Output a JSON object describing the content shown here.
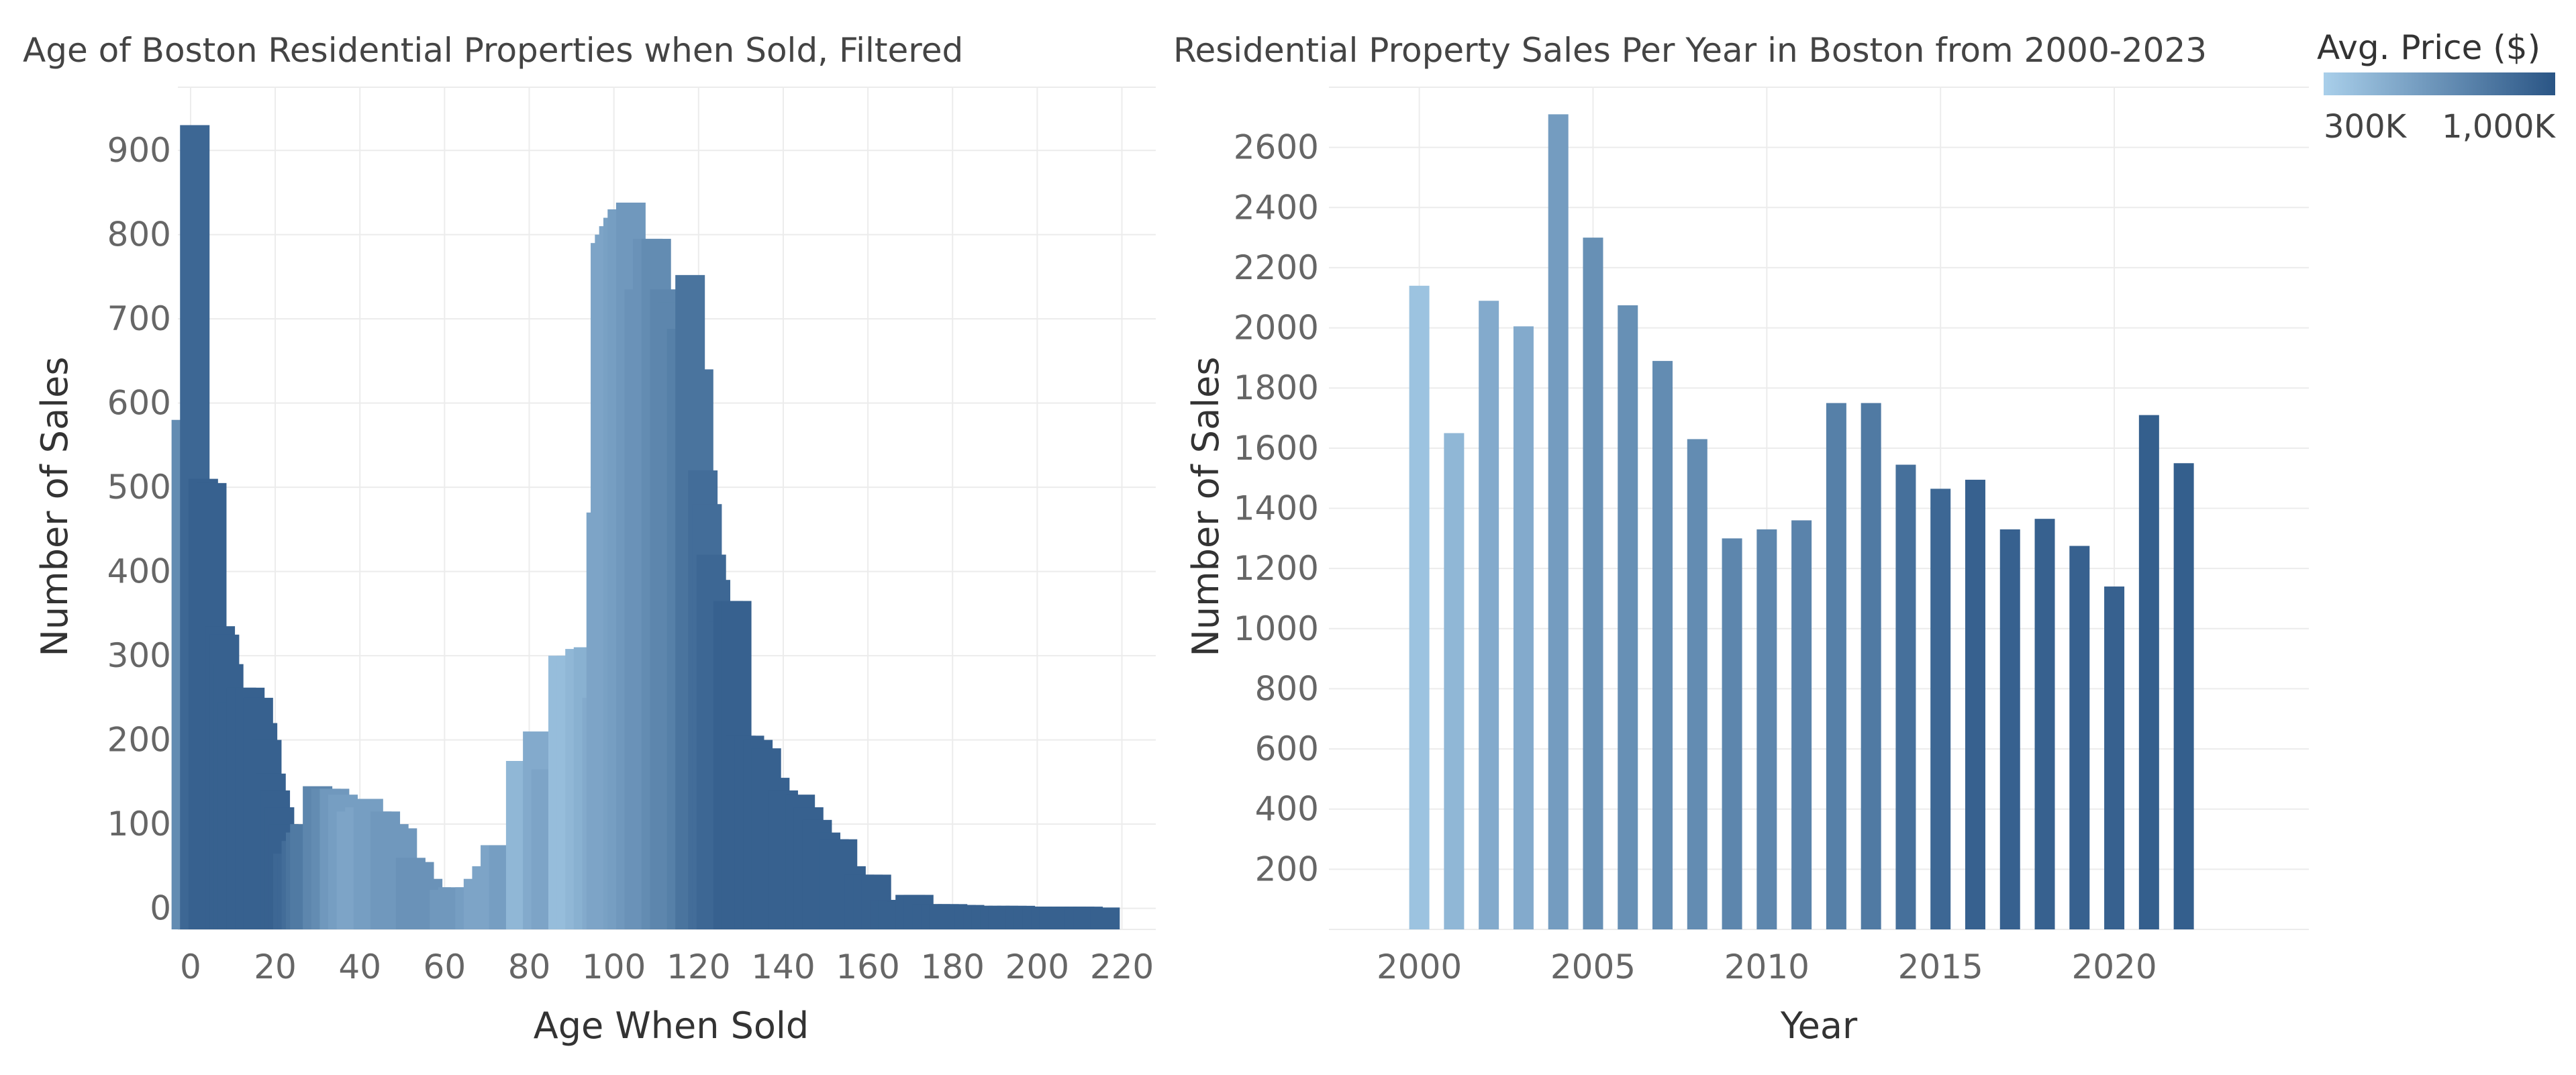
{
  "colors": {
    "low": "#a9cfea",
    "high": "#2a5585"
  },
  "legend": {
    "title": "Avg. Price ($)",
    "min_label": "300K",
    "max_label": "1,000K",
    "placement": "top-right"
  },
  "chart_data": [
    {
      "type": "bar",
      "title": "Age of Boston Residential Properties when Sold, Filtered",
      "xlabel": "Age When Sold",
      "ylabel": "Number of Sales",
      "xlim": [
        -3,
        228
      ],
      "ylim": [
        -25,
        975
      ],
      "xticks": [
        0,
        20,
        40,
        60,
        80,
        100,
        120,
        140,
        160,
        180,
        200,
        220
      ],
      "yticks": [
        0,
        100,
        200,
        300,
        400,
        500,
        600,
        700,
        800,
        900
      ],
      "grid": true,
      "bars": [
        {
          "x": -1,
          "y": 580,
          "shade": 0.55
        },
        {
          "x": 1,
          "y": 930,
          "shade": 0.85
        },
        {
          "x": 3,
          "y": 510,
          "shade": 0.9
        },
        {
          "x": 5,
          "y": 505,
          "shade": 0.9
        },
        {
          "x": 7,
          "y": 335,
          "shade": 0.9
        },
        {
          "x": 8,
          "y": 325,
          "shade": 0.9
        },
        {
          "x": 9,
          "y": 290,
          "shade": 0.9
        },
        {
          "x": 10,
          "y": 245,
          "shade": 0.9
        },
        {
          "x": 12,
          "y": 262,
          "shade": 0.9
        },
        {
          "x": 14,
          "y": 262,
          "shade": 0.9
        },
        {
          "x": 16,
          "y": 250,
          "shade": 0.9
        },
        {
          "x": 17,
          "y": 220,
          "shade": 0.9
        },
        {
          "x": 18,
          "y": 200,
          "shade": 0.9
        },
        {
          "x": 19,
          "y": 160,
          "shade": 0.9
        },
        {
          "x": 20,
          "y": 140,
          "shade": 0.9
        },
        {
          "x": 21,
          "y": 120,
          "shade": 0.9
        },
        {
          "x": 22,
          "y": 100,
          "shade": 0.9
        },
        {
          "x": 23,
          "y": 65,
          "shade": 0.85
        },
        {
          "x": 24,
          "y": 60,
          "shade": 0.85
        },
        {
          "x": 25,
          "y": 80,
          "shade": 0.8
        },
        {
          "x": 26,
          "y": 90,
          "shade": 0.75
        },
        {
          "x": 27,
          "y": 100,
          "shade": 0.7
        },
        {
          "x": 28,
          "y": 95,
          "shade": 0.7
        },
        {
          "x": 30,
          "y": 145,
          "shade": 0.6
        },
        {
          "x": 32,
          "y": 142,
          "shade": 0.55
        },
        {
          "x": 34,
          "y": 142,
          "shade": 0.45
        },
        {
          "x": 36,
          "y": 135,
          "shade": 0.4
        },
        {
          "x": 38,
          "y": 115,
          "shade": 0.35
        },
        {
          "x": 40,
          "y": 120,
          "shade": 0.35
        },
        {
          "x": 42,
          "y": 130,
          "shade": 0.4
        },
        {
          "x": 44,
          "y": 115,
          "shade": 0.4
        },
        {
          "x": 46,
          "y": 115,
          "shade": 0.45
        },
        {
          "x": 48,
          "y": 100,
          "shade": 0.45
        },
        {
          "x": 50,
          "y": 95,
          "shade": 0.45
        },
        {
          "x": 52,
          "y": 60,
          "shade": 0.5
        },
        {
          "x": 54,
          "y": 55,
          "shade": 0.5
        },
        {
          "x": 56,
          "y": 35,
          "shade": 0.5
        },
        {
          "x": 58,
          "y": 25,
          "shade": 0.5
        },
        {
          "x": 60,
          "y": 22,
          "shade": 0.45
        },
        {
          "x": 62,
          "y": 25,
          "shade": 0.45
        },
        {
          "x": 64,
          "y": 20,
          "shade": 0.45
        },
        {
          "x": 66,
          "y": 25,
          "shade": 0.4
        },
        {
          "x": 68,
          "y": 35,
          "shade": 0.35
        },
        {
          "x": 70,
          "y": 50,
          "shade": 0.35
        },
        {
          "x": 72,
          "y": 75,
          "shade": 0.35
        },
        {
          "x": 74,
          "y": 75,
          "shade": 0.4
        },
        {
          "x": 76,
          "y": 60,
          "shade": 0.4
        },
        {
          "x": 78,
          "y": 175,
          "shade": 0.2
        },
        {
          "x": 80,
          "y": 175,
          "shade": 0.2
        },
        {
          "x": 82,
          "y": 210,
          "shade": 0.3
        },
        {
          "x": 84,
          "y": 165,
          "shade": 0.35
        },
        {
          "x": 86,
          "y": 160,
          "shade": 0.35
        },
        {
          "x": 88,
          "y": 300,
          "shade": 0.15
        },
        {
          "x": 90,
          "y": 300,
          "shade": 0.15
        },
        {
          "x": 92,
          "y": 308,
          "shade": 0.2
        },
        {
          "x": 94,
          "y": 310,
          "shade": 0.25
        },
        {
          "x": 96,
          "y": 250,
          "shade": 0.3
        },
        {
          "x": 97,
          "y": 470,
          "shade": 0.35
        },
        {
          "x": 98,
          "y": 790,
          "shade": 0.35
        },
        {
          "x": 99,
          "y": 800,
          "shade": 0.35
        },
        {
          "x": 100,
          "y": 810,
          "shade": 0.35
        },
        {
          "x": 101,
          "y": 820,
          "shade": 0.38
        },
        {
          "x": 102,
          "y": 830,
          "shade": 0.4
        },
        {
          "x": 104,
          "y": 838,
          "shade": 0.45
        },
        {
          "x": 106,
          "y": 735,
          "shade": 0.5
        },
        {
          "x": 108,
          "y": 795,
          "shade": 0.5
        },
        {
          "x": 110,
          "y": 795,
          "shade": 0.55
        },
        {
          "x": 112,
          "y": 735,
          "shade": 0.6
        },
        {
          "x": 114,
          "y": 720,
          "shade": 0.6
        },
        {
          "x": 116,
          "y": 688,
          "shade": 0.65
        },
        {
          "x": 118,
          "y": 752,
          "shade": 0.75
        },
        {
          "x": 120,
          "y": 640,
          "shade": 0.75
        },
        {
          "x": 121,
          "y": 520,
          "shade": 0.8
        },
        {
          "x": 122,
          "y": 480,
          "shade": 0.8
        },
        {
          "x": 123,
          "y": 420,
          "shade": 0.85
        },
        {
          "x": 124,
          "y": 390,
          "shade": 0.85
        },
        {
          "x": 125,
          "y": 300,
          "shade": 0.85
        },
        {
          "x": 126,
          "y": 340,
          "shade": 0.85
        },
        {
          "x": 127,
          "y": 365,
          "shade": 0.9
        },
        {
          "x": 129,
          "y": 365,
          "shade": 0.9
        },
        {
          "x": 130,
          "y": 205,
          "shade": 0.9
        },
        {
          "x": 132,
          "y": 205,
          "shade": 0.9
        },
        {
          "x": 134,
          "y": 200,
          "shade": 0.9
        },
        {
          "x": 136,
          "y": 190,
          "shade": 0.9
        },
        {
          "x": 138,
          "y": 155,
          "shade": 0.9
        },
        {
          "x": 140,
          "y": 140,
          "shade": 0.9
        },
        {
          "x": 142,
          "y": 130,
          "shade": 0.9
        },
        {
          "x": 144,
          "y": 135,
          "shade": 0.9
        },
        {
          "x": 146,
          "y": 120,
          "shade": 0.9
        },
        {
          "x": 148,
          "y": 105,
          "shade": 0.9
        },
        {
          "x": 150,
          "y": 90,
          "shade": 0.9
        },
        {
          "x": 152,
          "y": 82,
          "shade": 0.9
        },
        {
          "x": 154,
          "y": 82,
          "shade": 0.9
        },
        {
          "x": 156,
          "y": 50,
          "shade": 0.9
        },
        {
          "x": 158,
          "y": 40,
          "shade": 0.9
        },
        {
          "x": 160,
          "y": 40,
          "shade": 0.9
        },
        {
          "x": 162,
          "y": 40,
          "shade": 0.9
        },
        {
          "x": 164,
          "y": 10,
          "shade": 0.9
        },
        {
          "x": 166,
          "y": 10,
          "shade": 0.9
        },
        {
          "x": 168,
          "y": 8,
          "shade": 0.9
        },
        {
          "x": 170,
          "y": 16,
          "shade": 0.9
        },
        {
          "x": 172,
          "y": 16,
          "shade": 0.9
        },
        {
          "x": 174,
          "y": 5,
          "shade": 0.9
        },
        {
          "x": 176,
          "y": 5,
          "shade": 0.9
        },
        {
          "x": 178,
          "y": 5,
          "shade": 0.9
        },
        {
          "x": 180,
          "y": 5,
          "shade": 0.9
        },
        {
          "x": 182,
          "y": 4,
          "shade": 0.9
        },
        {
          "x": 184,
          "y": 4,
          "shade": 0.9
        },
        {
          "x": 186,
          "y": 3,
          "shade": 0.9
        },
        {
          "x": 188,
          "y": 3,
          "shade": 0.9
        },
        {
          "x": 190,
          "y": 3,
          "shade": 0.9
        },
        {
          "x": 192,
          "y": 3,
          "shade": 0.9
        },
        {
          "x": 194,
          "y": 3,
          "shade": 0.9
        },
        {
          "x": 196,
          "y": 3,
          "shade": 0.9
        },
        {
          "x": 198,
          "y": 2,
          "shade": 0.9
        },
        {
          "x": 200,
          "y": 2,
          "shade": 0.9
        },
        {
          "x": 202,
          "y": 2,
          "shade": 0.9
        },
        {
          "x": 204,
          "y": 2,
          "shade": 0.9
        },
        {
          "x": 206,
          "y": 2,
          "shade": 0.9
        },
        {
          "x": 208,
          "y": 2,
          "shade": 0.9
        },
        {
          "x": 210,
          "y": 2,
          "shade": 0.9
        },
        {
          "x": 212,
          "y": 2,
          "shade": 0.9
        },
        {
          "x": 216,
          "y": 1,
          "shade": 0.9
        }
      ]
    },
    {
      "type": "bar",
      "title": "Residential Property Sales Per Year in Boston from 2000-2023",
      "xlabel": "Year",
      "ylabel": "Number of Sales",
      "xlim": [
        1997.4,
        2025.6
      ],
      "ylim": [
        0,
        2800
      ],
      "xticks": [
        2000,
        2005,
        2010,
        2015,
        2020
      ],
      "yticks": [
        200,
        400,
        600,
        800,
        1000,
        1200,
        1400,
        1600,
        1800,
        2000,
        2200,
        2400,
        2600
      ],
      "grid": true,
      "bars": [
        {
          "x": 2000,
          "y": 2140,
          "shade": 0.1
        },
        {
          "x": 2001,
          "y": 1650,
          "shade": 0.2
        },
        {
          "x": 2002,
          "y": 2090,
          "shade": 0.3
        },
        {
          "x": 2003,
          "y": 2005,
          "shade": 0.3
        },
        {
          "x": 2004,
          "y": 2710,
          "shade": 0.42
        },
        {
          "x": 2005,
          "y": 2300,
          "shade": 0.52
        },
        {
          "x": 2006,
          "y": 2075,
          "shade": 0.52
        },
        {
          "x": 2007,
          "y": 1890,
          "shade": 0.55
        },
        {
          "x": 2008,
          "y": 1630,
          "shade": 0.55
        },
        {
          "x": 2009,
          "y": 1300,
          "shade": 0.6
        },
        {
          "x": 2010,
          "y": 1330,
          "shade": 0.6
        },
        {
          "x": 2011,
          "y": 1360,
          "shade": 0.62
        },
        {
          "x": 2012,
          "y": 1750,
          "shade": 0.65
        },
        {
          "x": 2013,
          "y": 1750,
          "shade": 0.7
        },
        {
          "x": 2014,
          "y": 1545,
          "shade": 0.78
        },
        {
          "x": 2015,
          "y": 1465,
          "shade": 0.85
        },
        {
          "x": 2016,
          "y": 1495,
          "shade": 0.9
        },
        {
          "x": 2017,
          "y": 1330,
          "shade": 0.9
        },
        {
          "x": 2018,
          "y": 1365,
          "shade": 0.9
        },
        {
          "x": 2019,
          "y": 1275,
          "shade": 0.9
        },
        {
          "x": 2020,
          "y": 1140,
          "shade": 0.9
        },
        {
          "x": 2021,
          "y": 1710,
          "shade": 0.92
        },
        {
          "x": 2022,
          "y": 1550,
          "shade": 0.92
        }
      ]
    }
  ]
}
